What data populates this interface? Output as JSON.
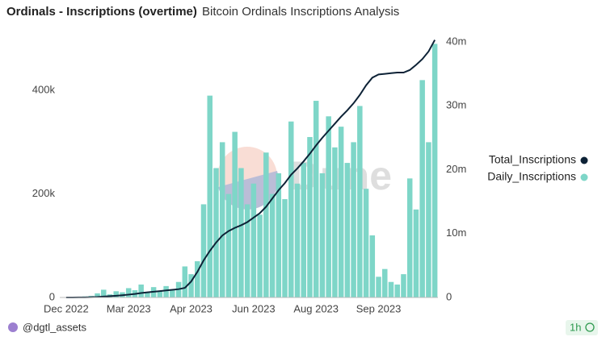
{
  "chart_data": {
    "type": "bar",
    "title": "Ordinals - Inscriptions (overtime)",
    "subtitle": "Bitcoin Ordinals Inscriptions Analysis",
    "categories": [
      "Dec 2022",
      null,
      null,
      null,
      null,
      null,
      null,
      null,
      null,
      null,
      "Mar 2023",
      null,
      null,
      null,
      null,
      null,
      null,
      null,
      null,
      null,
      "Apr 2023",
      null,
      null,
      null,
      null,
      null,
      null,
      null,
      null,
      null,
      "Jun 2023",
      null,
      null,
      null,
      null,
      null,
      null,
      null,
      null,
      null,
      "Aug 2023",
      null,
      null,
      null,
      null,
      null,
      null,
      null,
      null,
      null,
      "Sep 2023",
      null,
      null,
      null,
      null,
      null,
      null,
      null,
      null,
      null
    ],
    "series": [
      {
        "name": "Total_Inscriptions",
        "type": "line",
        "axis": "y2",
        "color": "#0d2236",
        "values": [
          0,
          0,
          10000,
          20000,
          40000,
          80000,
          150000,
          200000,
          270000,
          350000,
          450000,
          550000,
          700000,
          800000,
          900000,
          1000000,
          1100000,
          1200000,
          1300000,
          1500000,
          2500000,
          4000000,
          5800000,
          7300000,
          8600000,
          9700000,
          10400000,
          10900000,
          11300000,
          11800000,
          12500000,
          13200000,
          14200000,
          15500000,
          16800000,
          17900000,
          19200000,
          20200000,
          21300000,
          22500000,
          23800000,
          25000000,
          26100000,
          27200000,
          28300000,
          29300000,
          30400000,
          31700000,
          33200000,
          34400000,
          34900000,
          35000000,
          35100000,
          35200000,
          35200000,
          35600000,
          36400000,
          37300000,
          38500000,
          40300000
        ]
      },
      {
        "name": "Daily_Inscriptions",
        "type": "bar",
        "color": "#7ed6c8",
        "values": [
          0,
          0,
          1000,
          2000,
          3000,
          8000,
          15000,
          6000,
          12000,
          10000,
          18000,
          14000,
          25000,
          10000,
          20000,
          12000,
          22000,
          15000,
          30000,
          60000,
          45000,
          70000,
          180000,
          390000,
          250000,
          300000,
          200000,
          320000,
          250000,
          180000,
          220000,
          160000,
          280000,
          200000,
          240000,
          190000,
          340000,
          220000,
          260000,
          310000,
          380000,
          240000,
          350000,
          290000,
          330000,
          260000,
          300000,
          370000,
          210000,
          120000,
          40000,
          55000,
          30000,
          25000,
          45000,
          230000,
          170000,
          420000,
          300000,
          490000
        ]
      }
    ],
    "ylim": [
      0,
      500000
    ],
    "yticks": [
      0,
      {
        "value": 200000,
        "label": "200k"
      },
      {
        "value": 400000,
        "label": "400k"
      }
    ],
    "y2lim": [
      0,
      40500000
    ],
    "y2ticks": [
      0,
      {
        "value": 10000000,
        "label": "10m"
      },
      {
        "value": 20000000,
        "label": "20m"
      },
      {
        "value": 30000000,
        "label": "30m"
      },
      {
        "value": 40000000,
        "label": "40m"
      }
    ],
    "legend": "right"
  },
  "watermark": "Dune",
  "footer": {
    "author": "@dgtl_assets",
    "age": "1h"
  }
}
